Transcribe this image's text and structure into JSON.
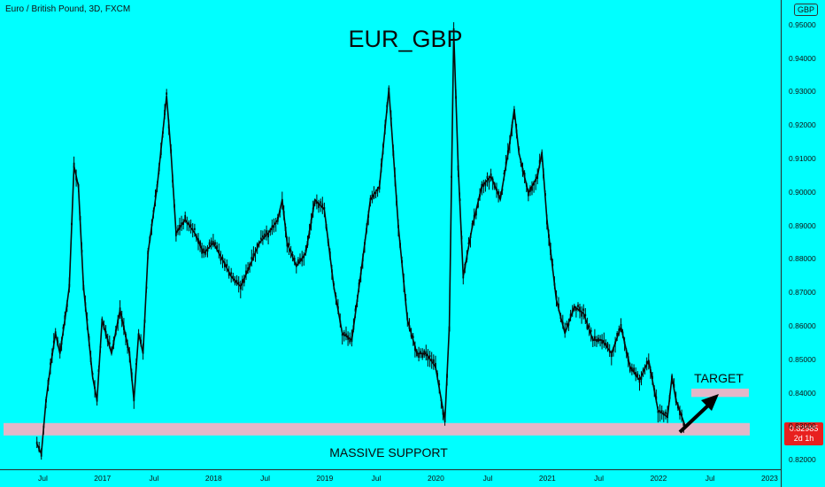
{
  "header": {
    "symbol_label": "Euro / British Pound, 3D, FXCM",
    "currency_badge": "GBP"
  },
  "price_tag": {
    "price": "0.82985",
    "countdown": "2d 1h"
  },
  "colors": {
    "background": "#00FFFF",
    "candles": "#0a0a0a",
    "zone": "#e3b7c8",
    "price_tag": "#e8201f"
  },
  "chart_data": {
    "type": "line",
    "title": "EUR_GBP",
    "series": [
      {
        "x": [
          "2016-06",
          "2016-06",
          "2016-07",
          "2016-07",
          "2016-08",
          "2016-08",
          "2016-09",
          "2016-09",
          "2016-10",
          "2016-10",
          "2016-11",
          "2016-12",
          "2016-12",
          "2017-01",
          "2017-02",
          "2017-03",
          "2017-04",
          "2017-04",
          "2017-05",
          "2017-05",
          "2017-06",
          "2017-07",
          "2017-08",
          "2017-08",
          "2017-09",
          "2017-10",
          "2017-11",
          "2017-12",
          "2018-01",
          "2018-02",
          "2018-03",
          "2018-04",
          "2018-05",
          "2018-06",
          "2018-07",
          "2018-08",
          "2018-08",
          "2018-09",
          "2018-10",
          "2018-11",
          "2018-12",
          "2019-01",
          "2019-02",
          "2019-03",
          "2019-04",
          "2019-05",
          "2019-06",
          "2019-07",
          "2019-08",
          "2019-08",
          "2019-09",
          "2019-10",
          "2019-11",
          "2019-12",
          "2020-01",
          "2020-02",
          "2020-02",
          "2020-03",
          "2020-03",
          "2020-04",
          "2020-05",
          "2020-06",
          "2020-07",
          "2020-08",
          "2020-09",
          "2020-09",
          "2020-10",
          "2020-11",
          "2020-12",
          "2020-12",
          "2021-01",
          "2021-02",
          "2021-03",
          "2021-04",
          "2021-05",
          "2021-06",
          "2021-07",
          "2021-08",
          "2021-09",
          "2021-10",
          "2021-11",
          "2021-12",
          "2022-01",
          "2022-02",
          "2022-02",
          "2022-03",
          "2022-04"
        ],
        "y": [
          0.825,
          0.822,
          0.838,
          0.848,
          0.858,
          0.852,
          0.862,
          0.872,
          0.908,
          0.902,
          0.872,
          0.845,
          0.838,
          0.862,
          0.852,
          0.865,
          0.852,
          0.838,
          0.858,
          0.852,
          0.882,
          0.902,
          0.929,
          0.912,
          0.888,
          0.892,
          0.888,
          0.882,
          0.885,
          0.88,
          0.875,
          0.872,
          0.878,
          0.885,
          0.888,
          0.892,
          0.898,
          0.885,
          0.878,
          0.882,
          0.898,
          0.895,
          0.872,
          0.858,
          0.856,
          0.876,
          0.898,
          0.902,
          0.931,
          0.912,
          0.89,
          0.862,
          0.852,
          0.852,
          0.848,
          0.832,
          0.86,
          0.948,
          0.908,
          0.875,
          0.89,
          0.902,
          0.905,
          0.898,
          0.915,
          0.925,
          0.912,
          0.9,
          0.905,
          0.912,
          0.892,
          0.868,
          0.858,
          0.866,
          0.864,
          0.856,
          0.856,
          0.852,
          0.86,
          0.848,
          0.844,
          0.85,
          0.835,
          0.833,
          0.845,
          0.838,
          0.83
        ]
      }
    ],
    "ylim": [
      0.8195,
      0.955
    ],
    "y_ticks": [
      "0.95000",
      "0.94000",
      "0.93000",
      "0.92000",
      "0.91000",
      "0.90000",
      "0.89000",
      "0.88000",
      "0.87000",
      "0.86000",
      "0.85000",
      "0.84000",
      "0.83000",
      "0.82000"
    ],
    "x_ticks": [
      "Jul",
      "2017",
      "Jul",
      "2018",
      "Jul",
      "2019",
      "Jul",
      "2020",
      "Jul",
      "2021",
      "Jul",
      "2022",
      "Jul",
      "2023"
    ],
    "zones": [
      {
        "label": "MASSIVE SUPPORT",
        "from": 0.8275,
        "to": 0.8312
      },
      {
        "label": "TARGET",
        "from": 0.839,
        "to": 0.8415
      }
    ],
    "annotations": [
      "MASSIVE SUPPORT",
      "TARGET"
    ],
    "grid": false,
    "legend": "none"
  }
}
